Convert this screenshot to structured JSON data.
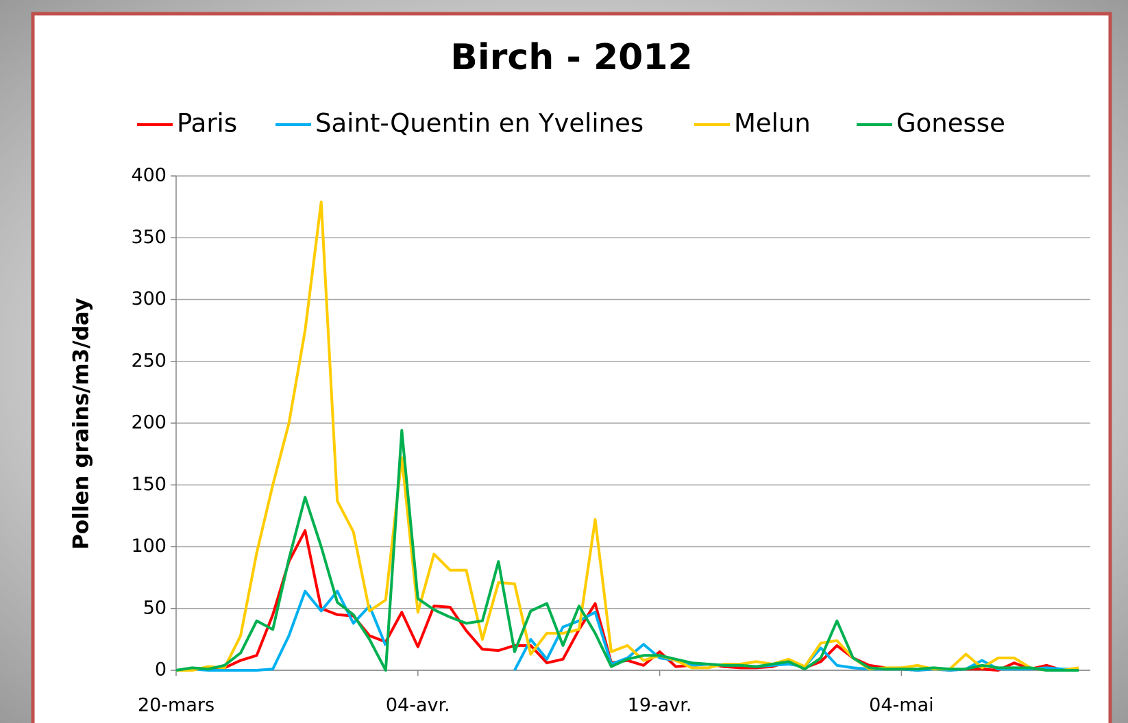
{
  "chart_data": {
    "type": "line",
    "title": "Birch - 2012",
    "y_label": "Pollen grains/m3/day",
    "categories": [
      "20-mars",
      null,
      null,
      null,
      null,
      null,
      null,
      null,
      null,
      null,
      null,
      null,
      null,
      null,
      null,
      "04-avr.",
      null,
      null,
      null,
      null,
      null,
      null,
      null,
      null,
      null,
      null,
      null,
      null,
      null,
      null,
      "19-avr.",
      null,
      null,
      null,
      null,
      null,
      null,
      null,
      null,
      null,
      null,
      null,
      null,
      null,
      null,
      "04-mai",
      null,
      null,
      null,
      null,
      null,
      null,
      null,
      null,
      null,
      null,
      null
    ],
    "series": [
      {
        "name": "Paris",
        "color": "#ff0000",
        "values": [
          0,
          1,
          1,
          2,
          8,
          12,
          45,
          88,
          113,
          50,
          45,
          44,
          28,
          23,
          47,
          19,
          52,
          51,
          32,
          17,
          16,
          20,
          20,
          6,
          9,
          33,
          54,
          6,
          8,
          4,
          15,
          3,
          4,
          5,
          3,
          2,
          2,
          3,
          7,
          2,
          7,
          20,
          10,
          4,
          2,
          1,
          0,
          1,
          0,
          1,
          1,
          0,
          6,
          1,
          4,
          0,
          1
        ]
      },
      {
        "name": "Saint-Quentin en Yvelines",
        "color": "#00b0f0",
        "values": [
          0,
          1,
          0,
          0,
          0,
          0,
          1,
          28,
          64,
          48,
          64,
          38,
          52,
          20,
          null,
          null,
          null,
          null,
          null,
          null,
          null,
          0,
          25,
          9,
          35,
          40,
          47,
          5,
          10,
          21,
          10,
          8,
          4,
          5,
          4,
          4,
          3,
          4,
          5,
          3,
          18,
          4,
          2,
          1,
          1,
          1,
          0,
          1,
          0,
          1,
          8,
          1,
          1,
          1,
          2,
          1,
          1
        ]
      },
      {
        "name": "Melun",
        "color": "#ffcc00",
        "values": [
          0,
          0,
          3,
          2,
          28,
          95,
          150,
          200,
          275,
          379,
          137,
          112,
          48,
          57,
          172,
          47,
          94,
          81,
          81,
          25,
          71,
          70,
          13,
          30,
          30,
          33,
          122,
          15,
          20,
          8,
          12,
          8,
          2,
          2,
          5,
          5,
          7,
          5,
          9,
          3,
          22,
          24,
          10,
          1,
          2,
          2,
          4,
          1,
          1,
          13,
          2,
          10,
          10,
          2,
          0,
          0,
          2
        ]
      },
      {
        "name": "Gonesse",
        "color": "#00b050",
        "values": [
          0,
          2,
          1,
          4,
          14,
          40,
          33,
          90,
          140,
          100,
          55,
          45,
          25,
          0,
          194,
          58,
          49,
          43,
          38,
          40,
          88,
          15,
          48,
          54,
          20,
          52,
          30,
          3,
          9,
          12,
          12,
          9,
          6,
          5,
          4,
          4,
          3,
          5,
          7,
          1,
          10,
          40,
          10,
          2,
          1,
          1,
          1,
          2,
          1,
          1,
          4,
          2,
          2,
          2,
          0,
          0,
          0
        ]
      }
    ],
    "ylim": [
      0,
      400
    ],
    "yticks": [
      0,
      50,
      100,
      150,
      200,
      250,
      300,
      350,
      400
    ],
    "grid": true,
    "legend": "top"
  }
}
